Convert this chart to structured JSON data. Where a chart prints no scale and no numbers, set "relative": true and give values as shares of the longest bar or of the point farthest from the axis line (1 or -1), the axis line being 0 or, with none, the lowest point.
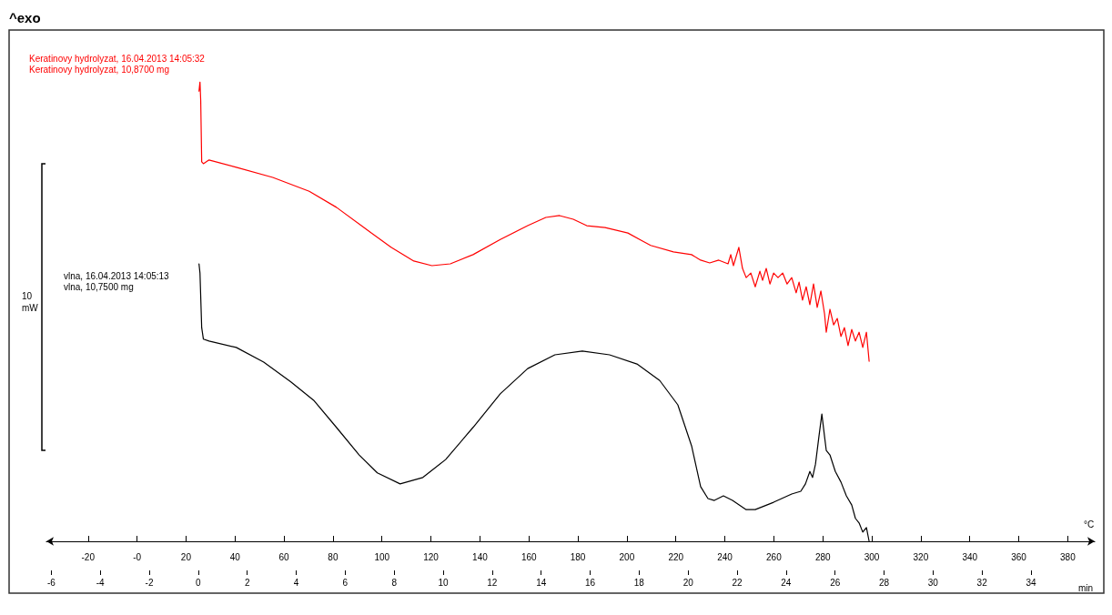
{
  "chart_data": {
    "type": "line",
    "title": "^exo",
    "xlabel": "°C",
    "x2label": "min",
    "ylabel": "10 mW",
    "relative": true,
    "xlim": [
      -37,
      391
    ],
    "xticks": [
      -20,
      {
        "value": 0,
        "label": "-0"
      },
      20,
      40,
      60,
      80,
      100,
      120,
      140,
      160,
      180,
      200,
      220,
      240,
      260,
      280,
      300,
      320,
      340,
      360,
      380
    ],
    "x2lim": [
      -6.2,
      36.6
    ],
    "x2ticks": [
      -6,
      -4,
      -2,
      0,
      2,
      4,
      6,
      8,
      10,
      12,
      14,
      16,
      18,
      20,
      22,
      24,
      26,
      28,
      30,
      32,
      34
    ],
    "grid": false,
    "series": [
      {
        "name": "Keratinovy hydrolyzat, 16.04.2013 14:05:32\nKeratinovy hydrolyzat, 10,8700 mg",
        "color": "#ff0000",
        "x": [
          25.3,
          25.7,
          26.0,
          26.4,
          27.1,
          29.4,
          40.5,
          55.4,
          70.3,
          81.4,
          92.6,
          103.7,
          113.0,
          120.4,
          127.9,
          137.2,
          148.3,
          159.5,
          166.9,
          172.5,
          178.1,
          183.6,
          191.1,
          200.4,
          205.9,
          209.7,
          219.0,
          226.4,
          230.1,
          233.8,
          237.5,
          241.3,
          242.4,
          243.5,
          245.7,
          247.2,
          248.7,
          250.6,
          252.4,
          254.3,
          255.4,
          256.9,
          258.4,
          259.9,
          261.7,
          263.6,
          265.4,
          267.3,
          269.1,
          270.3,
          271.7,
          273.2,
          274.7,
          276.2,
          277.7,
          279.2,
          280.7,
          281.4,
          282.9,
          284.4,
          285.9,
          287.4,
          288.8,
          290.3,
          291.8,
          293.3,
          294.8,
          296.3,
          297.8,
          298.9
        ],
        "values": [
          0.98,
          1.0,
          0.96,
          0.826,
          0.822,
          0.83,
          0.814,
          0.792,
          0.762,
          0.727,
          0.683,
          0.64,
          0.61,
          0.6,
          0.604,
          0.624,
          0.657,
          0.687,
          0.705,
          0.709,
          0.701,
          0.687,
          0.683,
          0.671,
          0.655,
          0.644,
          0.63,
          0.624,
          0.612,
          0.606,
          0.612,
          0.604,
          0.624,
          0.6,
          0.64,
          0.594,
          0.574,
          0.584,
          0.554,
          0.588,
          0.568,
          0.594,
          0.56,
          0.584,
          0.574,
          0.584,
          0.56,
          0.574,
          0.541,
          0.564,
          0.525,
          0.554,
          0.515,
          0.56,
          0.509,
          0.545,
          0.495,
          0.455,
          0.505,
          0.471,
          0.485,
          0.446,
          0.465,
          0.426,
          0.461,
          0.436,
          0.455,
          0.422,
          0.455,
          0.392
        ]
      },
      {
        "name": "vlna, 16.04.2013 14:05:13\nvlna, 10,7500 mg",
        "color": "#000000",
        "x": [
          25.3,
          25.7,
          26.4,
          27.1,
          29.4,
          40.5,
          51.7,
          62.8,
          72.1,
          81.4,
          90.7,
          98.1,
          107.4,
          116.7,
          126.0,
          137.2,
          148.3,
          159.5,
          170.6,
          181.8,
          192.9,
          204.1,
          213.4,
          220.8,
          226.4,
          230.1,
          233.1,
          235.7,
          239.4,
          243.1,
          248.7,
          252.4,
          259.9,
          267.3,
          271.0,
          272.9,
          274.7,
          275.8,
          277.0,
          278.4,
          279.6,
          280.7,
          281.4,
          282.9,
          285.1,
          287.4,
          289.6,
          291.8,
          293.3,
          294.8,
          296.3,
          297.8,
          298.9
        ],
        "values": [
          0.604,
          0.584,
          0.465,
          0.44,
          0.436,
          0.422,
          0.39,
          0.347,
          0.307,
          0.248,
          0.188,
          0.149,
          0.125,
          0.139,
          0.178,
          0.248,
          0.321,
          0.376,
          0.406,
          0.414,
          0.406,
          0.386,
          0.35,
          0.297,
          0.208,
          0.119,
          0.093,
          0.089,
          0.099,
          0.089,
          0.069,
          0.069,
          0.085,
          0.103,
          0.109,
          0.125,
          0.152,
          0.139,
          0.168,
          0.228,
          0.277,
          0.228,
          0.198,
          0.188,
          0.152,
          0.129,
          0.099,
          0.079,
          0.05,
          0.04,
          0.02,
          0.03,
          0.0
        ]
      }
    ]
  }
}
